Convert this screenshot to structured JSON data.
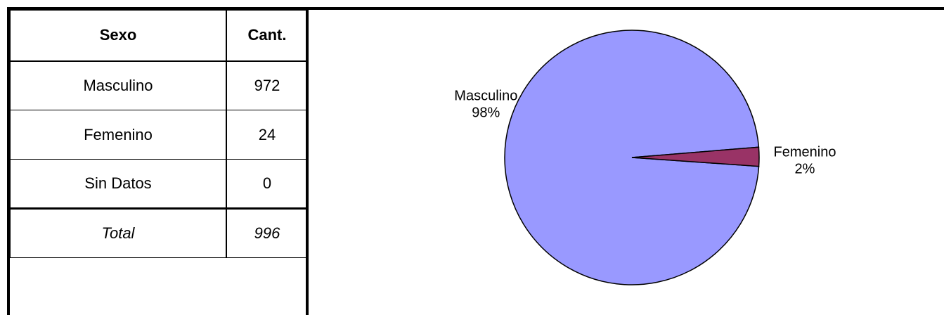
{
  "table": {
    "headers": {
      "sexo": "Sexo",
      "cant": "Cant."
    },
    "rows": [
      {
        "sexo": "Masculino",
        "cant": "972"
      },
      {
        "sexo": "Femenino",
        "cant": "24"
      },
      {
        "sexo": "Sin Datos",
        "cant": "0"
      }
    ],
    "total": {
      "label": "Total",
      "value": "996"
    }
  },
  "chart_data": {
    "type": "pie",
    "categories": [
      "Masculino",
      "Femenino"
    ],
    "values": [
      972,
      24
    ],
    "percent_labels": [
      "98%",
      "2%"
    ],
    "colors": [
      "#9999FF",
      "#993366"
    ],
    "outline_color": "#000000",
    "title": "",
    "legend": "none"
  }
}
